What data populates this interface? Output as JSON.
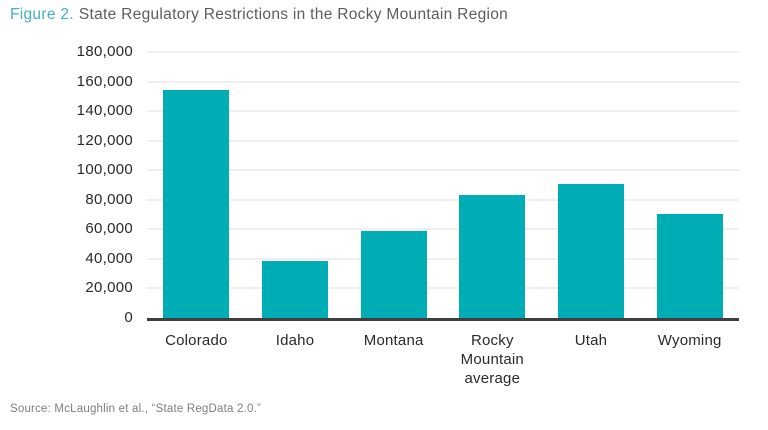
{
  "title": {
    "figure_label": "Figure 2.",
    "text": "State Regulatory Restrictions in the Rocky Mountain Region"
  },
  "source": "Source: McLaughlin et al., “State RegData 2.0.”",
  "colors": {
    "bar": "#00adb5",
    "figure_label": "#42b0c5",
    "title_text": "#5c5d5f",
    "gridline": "#f1eff0",
    "axis_line": "#3f3f41",
    "tick_label": "#2a2a2c",
    "source_text": "#7d7e81"
  },
  "chart_data": {
    "type": "bar",
    "title": "Figure 2. State Regulatory Restrictions in the Rocky Mountain Region",
    "categories": [
      "Colorado",
      "Idaho",
      "Montana",
      "Rocky Mountain average",
      "Utah",
      "Wyoming"
    ],
    "values": [
      154500,
      38500,
      59000,
      83000,
      90500,
      70500
    ],
    "xlabel": "",
    "ylabel": "",
    "ylim": [
      0,
      180000
    ],
    "ytick_step": 20000,
    "ytick_labels": [
      "0",
      "20,000",
      "40,000",
      "60,000",
      "80,000",
      "100,000",
      "120,000",
      "140,000",
      "160,000",
      "180,000"
    ],
    "grid": true,
    "legend": false,
    "source": "Source: McLaughlin et al., “State RegData 2.0.”"
  }
}
